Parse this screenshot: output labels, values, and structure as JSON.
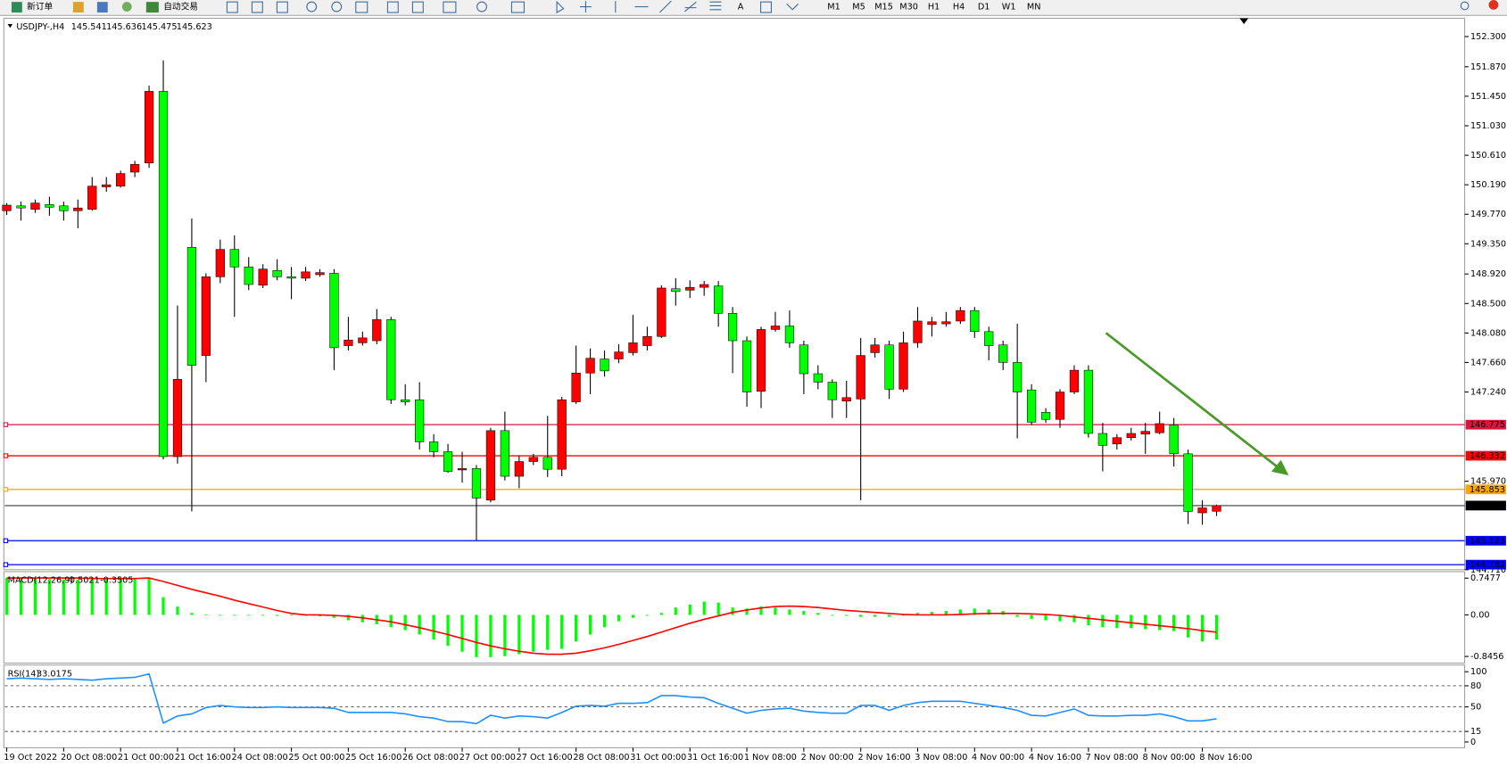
{
  "toolbar": {
    "new_order": "新订单",
    "auto_trading": "自动交易",
    "text_tool": "A",
    "timeframes": [
      "M1",
      "M5",
      "M15",
      "M30",
      "H1",
      "H4",
      "D1",
      "W1",
      "MN"
    ]
  },
  "chart_data": [
    {
      "type": "candlestick",
      "title": "USDJPY-,H4",
      "up_color": "#ff0000",
      "down_color": "#00ff00",
      "last_line_color": "#000000",
      "categories": [
        "19 Oct 2022",
        null,
        null,
        null,
        "20 Oct 08:00",
        null,
        null,
        null,
        "21 Oct 00:00",
        null,
        null,
        null,
        "21 Oct 16:00",
        null,
        null,
        null,
        "24 Oct 08:00",
        null,
        null,
        null,
        "25 Oct 00:00",
        null,
        null,
        null,
        "25 Oct 16:00",
        null,
        null,
        null,
        "26 Oct 08:00",
        null,
        null,
        null,
        "27 Oct 00:00",
        null,
        null,
        null,
        "27 Oct 16:00",
        null,
        null,
        null,
        "28 Oct 08:00",
        null,
        null,
        null,
        "31 Oct 00:00",
        null,
        null,
        null,
        "31 Oct 16:00",
        null,
        null,
        null,
        "1 Nov 08:00",
        null,
        null,
        null,
        "2 Nov 00:00",
        null,
        null,
        null,
        "2 Nov 16:00",
        null,
        null,
        null,
        "3 Nov 08:00",
        null,
        null,
        null,
        "4 Nov 00:00",
        null,
        null,
        null,
        "4 Nov 16:00",
        null,
        null,
        null,
        "7 Nov 08:00",
        null,
        null,
        null,
        "8 Nov 00:00",
        null,
        null,
        null,
        "8 Nov 16:00",
        null
      ],
      "ohlc": [
        [
          149.82,
          149.93,
          149.76,
          149.9
        ],
        [
          149.89,
          149.95,
          149.68,
          149.86
        ],
        [
          149.84,
          149.98,
          149.79,
          149.93
        ],
        [
          149.91,
          150.02,
          149.75,
          149.87
        ],
        [
          149.89,
          149.95,
          149.68,
          149.82
        ],
        [
          149.82,
          149.98,
          149.57,
          149.86
        ],
        [
          149.84,
          150.3,
          149.82,
          150.17
        ],
        [
          150.16,
          150.3,
          150.09,
          150.19
        ],
        [
          150.17,
          150.39,
          150.15,
          150.35
        ],
        [
          150.37,
          150.53,
          150.3,
          150.48
        ],
        [
          150.5,
          151.6,
          150.43,
          151.52
        ],
        [
          151.52,
          151.96,
          146.28,
          146.32
        ],
        [
          146.32,
          148.47,
          146.22,
          147.42
        ],
        [
          149.3,
          149.71,
          145.54,
          147.62
        ],
        [
          147.76,
          148.93,
          147.38,
          148.88
        ],
        [
          148.88,
          149.41,
          148.79,
          149.27
        ],
        [
          149.27,
          149.47,
          148.31,
          149.02
        ],
        [
          149.02,
          149.16,
          148.69,
          148.77
        ],
        [
          148.76,
          149.06,
          148.72,
          148.99
        ],
        [
          148.97,
          149.13,
          148.83,
          148.88
        ],
        [
          148.88,
          149.02,
          148.56,
          148.86
        ],
        [
          148.86,
          149.02,
          148.82,
          148.95
        ],
        [
          148.91,
          148.99,
          148.88,
          148.94
        ],
        [
          148.93,
          148.99,
          147.55,
          147.87
        ],
        [
          147.9,
          148.31,
          147.83,
          147.98
        ],
        [
          147.94,
          148.1,
          147.9,
          148.01
        ],
        [
          147.97,
          148.42,
          147.92,
          148.27
        ],
        [
          148.27,
          148.31,
          147.07,
          147.13
        ],
        [
          147.13,
          147.35,
          147.05,
          147.1
        ],
        [
          147.13,
          147.38,
          146.42,
          146.53
        ],
        [
          146.53,
          146.64,
          146.31,
          146.39
        ],
        [
          146.39,
          146.5,
          146.09,
          146.11
        ],
        [
          146.13,
          146.39,
          145.95,
          146.15
        ],
        [
          146.15,
          146.2,
          145.13,
          145.73
        ],
        [
          145.7,
          146.73,
          145.67,
          146.69
        ],
        [
          146.69,
          146.96,
          145.98,
          146.04
        ],
        [
          146.04,
          146.33,
          145.87,
          146.25
        ],
        [
          146.25,
          146.36,
          146.2,
          146.31
        ],
        [
          146.31,
          146.9,
          146.03,
          146.14
        ],
        [
          146.14,
          147.17,
          146.04,
          147.13
        ],
        [
          147.1,
          147.9,
          147.07,
          147.51
        ],
        [
          147.51,
          147.86,
          147.21,
          147.72
        ],
        [
          147.71,
          147.83,
          147.46,
          147.54
        ],
        [
          147.71,
          147.92,
          147.65,
          147.81
        ],
        [
          147.8,
          148.34,
          147.76,
          147.94
        ],
        [
          147.9,
          148.17,
          147.83,
          148.03
        ],
        [
          148.03,
          148.76,
          148.01,
          148.72
        ],
        [
          148.71,
          148.86,
          148.47,
          148.67
        ],
        [
          148.69,
          148.83,
          148.58,
          148.73
        ],
        [
          148.73,
          148.82,
          148.61,
          148.77
        ],
        [
          148.75,
          148.82,
          148.17,
          148.36
        ],
        [
          148.36,
          148.45,
          147.51,
          147.97
        ],
        [
          147.97,
          148.03,
          147.03,
          147.24
        ],
        [
          147.25,
          148.17,
          147.01,
          148.13
        ],
        [
          148.13,
          148.38,
          148.1,
          148.18
        ],
        [
          148.18,
          148.4,
          147.87,
          147.94
        ],
        [
          147.91,
          147.97,
          147.21,
          147.5
        ],
        [
          147.5,
          147.62,
          147.28,
          147.38
        ],
        [
          147.38,
          147.42,
          146.87,
          147.13
        ],
        [
          147.11,
          147.4,
          146.87,
          147.16
        ],
        [
          147.14,
          148.01,
          145.7,
          147.76
        ],
        [
          147.8,
          148.01,
          147.73,
          147.91
        ],
        [
          147.91,
          147.97,
          147.14,
          147.28
        ],
        [
          147.28,
          148.1,
          147.24,
          147.94
        ],
        [
          147.94,
          148.45,
          147.87,
          148.25
        ],
        [
          148.2,
          148.31,
          148.03,
          148.24
        ],
        [
          148.21,
          148.38,
          148.17,
          148.24
        ],
        [
          148.25,
          148.45,
          148.21,
          148.4
        ],
        [
          148.4,
          148.45,
          148.01,
          148.1
        ],
        [
          148.1,
          148.17,
          147.69,
          147.9
        ],
        [
          147.91,
          147.97,
          147.55,
          147.66
        ],
        [
          147.66,
          148.21,
          146.58,
          147.24
        ],
        [
          147.27,
          147.35,
          146.77,
          146.81
        ],
        [
          146.95,
          147.01,
          146.8,
          146.85
        ],
        [
          146.85,
          147.28,
          146.73,
          147.24
        ],
        [
          147.24,
          147.62,
          147.21,
          147.55
        ],
        [
          147.55,
          147.62,
          146.59,
          146.65
        ],
        [
          146.65,
          146.8,
          146.11,
          146.48
        ],
        [
          146.5,
          146.64,
          146.42,
          146.59
        ],
        [
          146.59,
          146.73,
          146.55,
          146.65
        ],
        [
          146.64,
          146.8,
          146.36,
          146.68
        ],
        [
          146.66,
          146.96,
          146.64,
          146.79
        ],
        [
          146.77,
          146.87,
          146.18,
          146.36
        ],
        [
          146.36,
          146.42,
          145.36,
          145.54
        ],
        [
          145.52,
          145.7,
          145.35,
          145.59
        ],
        [
          145.541,
          145.636,
          145.475,
          145.623
        ]
      ],
      "levels": [
        {
          "value": 146.775,
          "color": "#dc143c"
        },
        {
          "value": 146.332,
          "color": "#ff0000"
        },
        {
          "value": 145.853,
          "color": "#ffa500"
        },
        {
          "value": 145.123,
          "color": "#0000ff"
        },
        {
          "value": 144.782,
          "color": "#0000ff"
        }
      ],
      "ylim": [
        144.71,
        152.56
      ],
      "yticks": [
        {
          "value": 152.3,
          "label": "152.300"
        },
        {
          "value": 151.87,
          "label": "151.870"
        },
        {
          "value": 151.45,
          "label": "151.450"
        },
        {
          "value": 151.03,
          "label": "151.030"
        },
        {
          "value": 150.61,
          "label": "150.610"
        },
        {
          "value": 150.19,
          "label": "150.190"
        },
        {
          "value": 149.77,
          "label": "149.770"
        },
        {
          "value": 149.35,
          "label": "149.350"
        },
        {
          "value": 148.92,
          "label": "148.920"
        },
        {
          "value": 148.5,
          "label": "148.500"
        },
        {
          "value": 148.08,
          "label": "148.080"
        },
        {
          "value": 147.66,
          "label": "147.660"
        },
        {
          "value": 147.24,
          "label": "147.240"
        },
        {
          "value": 145.97,
          "label": "145.970"
        },
        {
          "value": 144.71,
          "label": "144.710"
        }
      ]
    },
    {
      "type": "macd",
      "title": "MACD(12,26,9)",
      "ylim": [
        -0.98,
        0.88
      ],
      "yticks": [
        0.7477,
        {
          "value": 0,
          "label": "0.00"
        },
        -0.8456
      ],
      "series": [
        {
          "color": "#00ff00",
          "values": [
            0.75,
            0.74,
            0.74,
            0.73,
            0.72,
            0.72,
            0.72,
            0.74,
            0.76,
            0.75,
            0.76,
            0.36,
            0.17,
            0.04,
            0.01,
            -0.01,
            -0.01,
            0.0,
            -0.01,
            -0.02,
            -0.01,
            -0.02,
            -0.03,
            -0.06,
            -0.11,
            -0.15,
            -0.19,
            -0.25,
            -0.31,
            -0.4,
            -0.5,
            -0.63,
            -0.75,
            -0.86,
            -0.86,
            -0.84,
            -0.8,
            -0.75,
            -0.71,
            -0.69,
            -0.54,
            -0.4,
            -0.25,
            -0.13,
            -0.06,
            0.0,
            0.04,
            0.15,
            0.21,
            0.27,
            0.25,
            0.15,
            0.13,
            0.17,
            0.15,
            0.11,
            0.08,
            0.04,
            0.0,
            -0.02,
            -0.04,
            -0.04,
            -0.04,
            0.0,
            0.04,
            0.06,
            0.08,
            0.11,
            0.13,
            0.11,
            0.08,
            -0.04,
            -0.08,
            -0.11,
            -0.13,
            -0.15,
            -0.21,
            -0.25,
            -0.27,
            -0.27,
            -0.29,
            -0.31,
            -0.33,
            -0.46,
            -0.54,
            -0.5021
          ]
        },
        {
          "color": "#ff0000",
          "values": [
            0.75,
            0.75,
            0.75,
            0.75,
            0.75,
            0.75,
            0.74,
            0.74,
            0.74,
            0.74,
            0.75,
            0.68,
            0.6,
            0.52,
            0.45,
            0.38,
            0.3,
            0.23,
            0.16,
            0.09,
            0.03,
            0.0,
            0.0,
            -0.01,
            -0.03,
            -0.06,
            -0.1,
            -0.14,
            -0.2,
            -0.26,
            -0.33,
            -0.4,
            -0.48,
            -0.56,
            -0.63,
            -0.69,
            -0.74,
            -0.78,
            -0.8,
            -0.8,
            -0.78,
            -0.73,
            -0.67,
            -0.6,
            -0.52,
            -0.44,
            -0.35,
            -0.26,
            -0.17,
            -0.09,
            -0.02,
            0.05,
            0.1,
            0.14,
            0.17,
            0.18,
            0.17,
            0.15,
            0.12,
            0.09,
            0.07,
            0.05,
            0.03,
            0.01,
            0.0,
            0.0,
            0.0,
            0.01,
            0.02,
            0.03,
            0.03,
            0.03,
            0.02,
            0.01,
            -0.01,
            -0.04,
            -0.07,
            -0.1,
            -0.13,
            -0.16,
            -0.19,
            -0.22,
            -0.25,
            -0.28,
            -0.32,
            -0.3505
          ]
        }
      ]
    },
    {
      "type": "line",
      "title": "RSI(14)",
      "color": "#1e90ff",
      "ylim": [
        0,
        100
      ],
      "yticks": [
        100,
        80,
        50,
        15,
        0
      ],
      "grid": "dashed",
      "values": [
        90,
        91,
        90,
        89,
        90,
        89,
        88,
        90,
        91,
        92,
        97,
        27,
        37,
        40,
        49,
        52,
        50,
        49,
        49,
        50,
        49,
        49,
        49,
        48,
        42,
        42,
        42,
        42,
        40,
        36,
        34,
        29,
        29,
        26,
        38,
        34,
        37,
        36,
        34,
        42,
        51,
        52,
        51,
        55,
        55,
        56,
        66,
        66,
        64,
        63,
        55,
        48,
        41,
        45,
        47,
        48,
        44,
        42,
        41,
        41,
        52,
        52,
        45,
        52,
        56,
        58,
        58,
        58,
        55,
        52,
        49,
        45,
        38,
        37,
        42,
        47,
        38,
        37,
        37,
        38,
        38,
        40,
        36,
        30,
        30,
        33.0175
      ]
    }
  ]
}
